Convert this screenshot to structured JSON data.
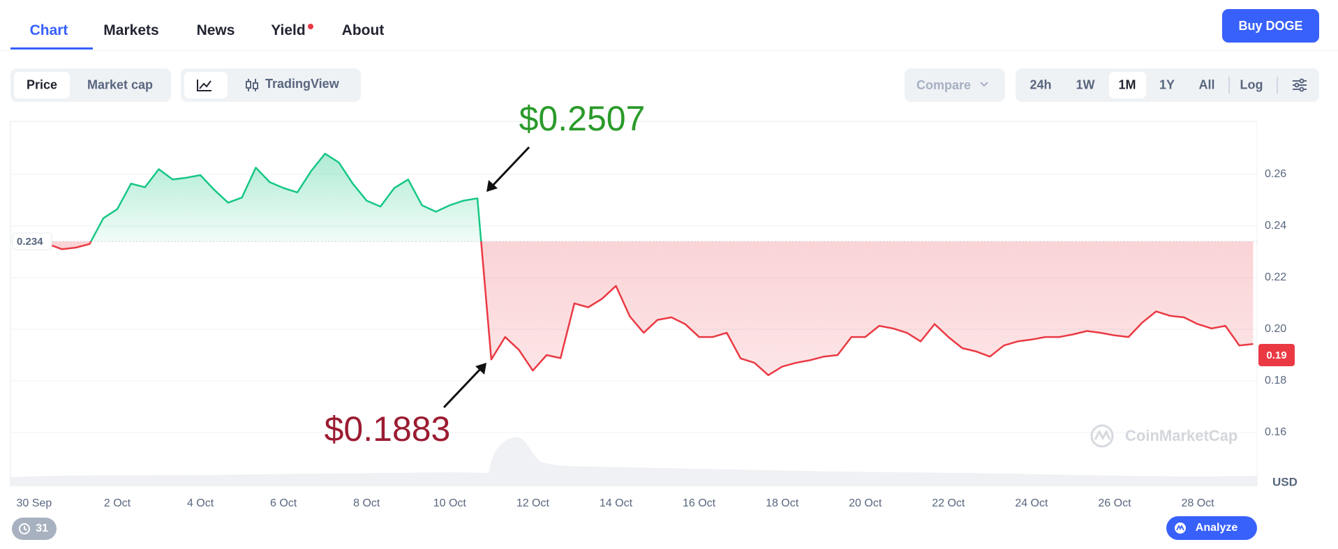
{
  "nav": {
    "tabs": [
      "Chart",
      "Markets",
      "News",
      "Yield",
      "About"
    ],
    "button": "Buy DOGE"
  },
  "toolbar": {
    "view_toggle": [
      "Price",
      "Market cap"
    ],
    "chart_style": "TradingView",
    "compare": "Compare",
    "ranges": [
      "24h",
      "1W",
      "1M",
      "1Y",
      "All"
    ],
    "scale": "Log"
  },
  "footer": {
    "events": "31",
    "analyze": "Analyze"
  },
  "chart_data": {
    "type": "line",
    "categories": [
      null,
      "30 Sep",
      null,
      null,
      null,
      null,
      null,
      "2 Oct",
      null,
      null,
      null,
      null,
      null,
      "4 Oct",
      null,
      null,
      null,
      null,
      null,
      "6 Oct",
      null,
      null,
      null,
      null,
      null,
      "8 Oct",
      null,
      null,
      null,
      null,
      null,
      "10 Oct",
      null,
      null,
      null,
      null,
      null,
      "12 Oct",
      null,
      null,
      null,
      null,
      null,
      "14 Oct",
      null,
      null,
      null,
      null,
      null,
      "16 Oct",
      null,
      null,
      null,
      null,
      null,
      "18 Oct",
      null,
      null,
      null,
      null,
      null,
      "20 Oct",
      null,
      null,
      null,
      null,
      null,
      "22 Oct",
      null,
      null,
      null,
      null,
      null,
      "24 Oct",
      null,
      null,
      null,
      null,
      null,
      "26 Oct",
      null,
      null,
      null,
      null,
      null,
      "28 Oct",
      null,
      null,
      null,
      null
    ],
    "values": [
      0.234,
      0.234,
      0.233,
      0.231,
      0.2316,
      0.233,
      0.243,
      0.2465,
      0.2564,
      0.255,
      0.262,
      0.258,
      0.2587,
      0.2597,
      0.254,
      0.249,
      0.251,
      0.2626,
      0.257,
      0.2547,
      0.253,
      0.2613,
      0.268,
      0.2646,
      0.2564,
      0.2498,
      0.2475,
      0.2547,
      0.258,
      0.248,
      0.2455,
      0.248,
      0.2498,
      0.2507,
      0.1883,
      0.197,
      0.192,
      0.184,
      0.19,
      0.1888,
      0.21,
      0.2085,
      0.2118,
      0.2168,
      0.205,
      0.1986,
      0.2036,
      0.2046,
      0.202,
      0.197,
      0.197,
      0.1986,
      0.1887,
      0.187,
      0.1822,
      0.1855,
      0.187,
      0.188,
      0.1894,
      0.19,
      0.197,
      0.197,
      0.2013,
      0.2003,
      0.1986,
      0.1953,
      0.202,
      0.197,
      0.1927,
      0.1914,
      0.1894,
      0.1937,
      0.1953,
      0.196,
      0.197,
      0.197,
      0.198,
      0.1993,
      0.1986,
      0.1976,
      0.197,
      0.2026,
      0.2069,
      0.2052,
      0.2046,
      0.202,
      0.2003,
      0.2013,
      0.1937,
      0.1943
    ],
    "baseline": 0.234,
    "current_price": 0.19,
    "color_above": "#16c784",
    "color_below": "#ea3943",
    "ylim": [
      0.1392,
      0.2805
    ],
    "yticks": [
      0.16,
      0.18,
      {
        "value": 0.2,
        "label": "0.20"
      },
      0.22,
      0.24,
      0.26
    ],
    "y_unit": "USD",
    "grid": true,
    "watermark": "CoinMarketCap",
    "annotations": [
      {
        "text": "$0.2507",
        "color": "#2a9a2a"
      },
      {
        "text": "$0.1883",
        "color": "#9b1c31"
      }
    ]
  }
}
